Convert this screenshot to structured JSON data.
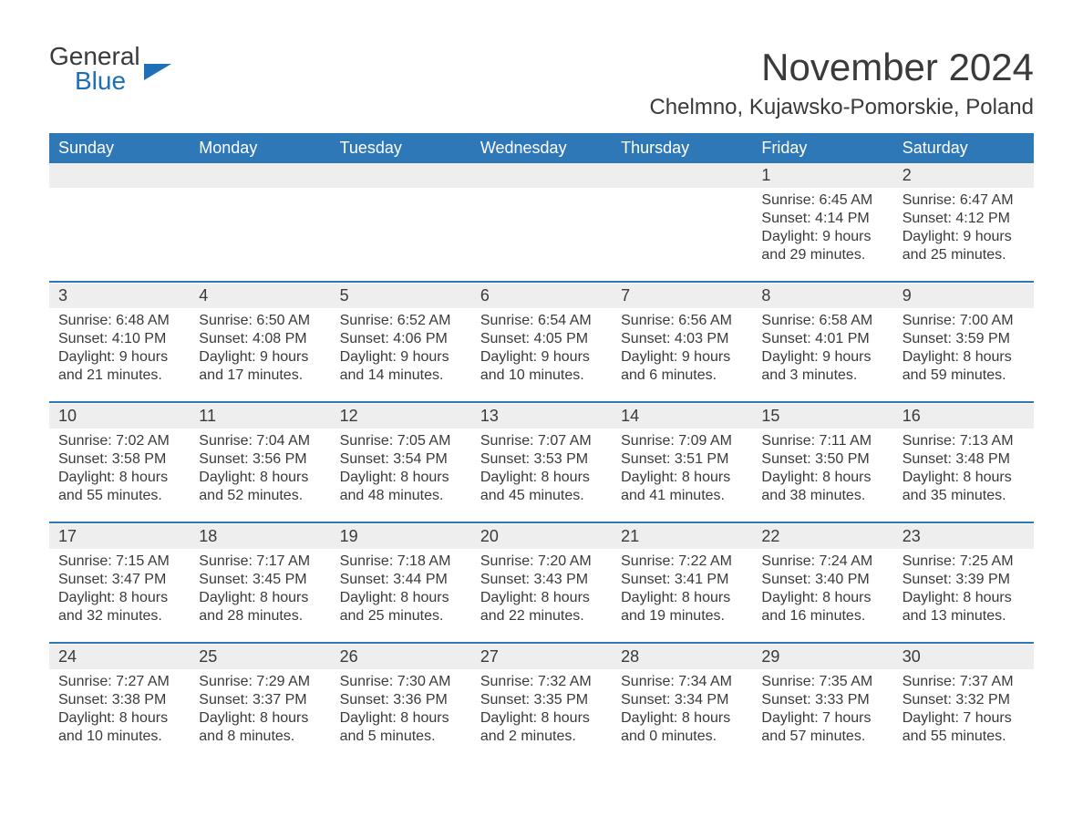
{
  "brand": {
    "general": "General",
    "blue": "Blue"
  },
  "title": "November 2024",
  "location": "Chelmno, Kujawsko-Pomorskie, Poland",
  "colors": {
    "header_bg": "#2f78b7",
    "header_text": "#ffffff",
    "daynum_bg": "#eeeeee",
    "border": "#2f78b7",
    "text": "#3a3a3a",
    "brand_blue": "#1d6fb8",
    "page_bg": "#ffffff"
  },
  "weekdays": [
    "Sunday",
    "Monday",
    "Tuesday",
    "Wednesday",
    "Thursday",
    "Friday",
    "Saturday"
  ],
  "weeks": [
    [
      null,
      null,
      null,
      null,
      null,
      {
        "n": "1",
        "sunrise": "Sunrise: 6:45 AM",
        "sunset": "Sunset: 4:14 PM",
        "d1": "Daylight: 9 hours",
        "d2": "and 29 minutes."
      },
      {
        "n": "2",
        "sunrise": "Sunrise: 6:47 AM",
        "sunset": "Sunset: 4:12 PM",
        "d1": "Daylight: 9 hours",
        "d2": "and 25 minutes."
      }
    ],
    [
      {
        "n": "3",
        "sunrise": "Sunrise: 6:48 AM",
        "sunset": "Sunset: 4:10 PM",
        "d1": "Daylight: 9 hours",
        "d2": "and 21 minutes."
      },
      {
        "n": "4",
        "sunrise": "Sunrise: 6:50 AM",
        "sunset": "Sunset: 4:08 PM",
        "d1": "Daylight: 9 hours",
        "d2": "and 17 minutes."
      },
      {
        "n": "5",
        "sunrise": "Sunrise: 6:52 AM",
        "sunset": "Sunset: 4:06 PM",
        "d1": "Daylight: 9 hours",
        "d2": "and 14 minutes."
      },
      {
        "n": "6",
        "sunrise": "Sunrise: 6:54 AM",
        "sunset": "Sunset: 4:05 PM",
        "d1": "Daylight: 9 hours",
        "d2": "and 10 minutes."
      },
      {
        "n": "7",
        "sunrise": "Sunrise: 6:56 AM",
        "sunset": "Sunset: 4:03 PM",
        "d1": "Daylight: 9 hours",
        "d2": "and 6 minutes."
      },
      {
        "n": "8",
        "sunrise": "Sunrise: 6:58 AM",
        "sunset": "Sunset: 4:01 PM",
        "d1": "Daylight: 9 hours",
        "d2": "and 3 minutes."
      },
      {
        "n": "9",
        "sunrise": "Sunrise: 7:00 AM",
        "sunset": "Sunset: 3:59 PM",
        "d1": "Daylight: 8 hours",
        "d2": "and 59 minutes."
      }
    ],
    [
      {
        "n": "10",
        "sunrise": "Sunrise: 7:02 AM",
        "sunset": "Sunset: 3:58 PM",
        "d1": "Daylight: 8 hours",
        "d2": "and 55 minutes."
      },
      {
        "n": "11",
        "sunrise": "Sunrise: 7:04 AM",
        "sunset": "Sunset: 3:56 PM",
        "d1": "Daylight: 8 hours",
        "d2": "and 52 minutes."
      },
      {
        "n": "12",
        "sunrise": "Sunrise: 7:05 AM",
        "sunset": "Sunset: 3:54 PM",
        "d1": "Daylight: 8 hours",
        "d2": "and 48 minutes."
      },
      {
        "n": "13",
        "sunrise": "Sunrise: 7:07 AM",
        "sunset": "Sunset: 3:53 PM",
        "d1": "Daylight: 8 hours",
        "d2": "and 45 minutes."
      },
      {
        "n": "14",
        "sunrise": "Sunrise: 7:09 AM",
        "sunset": "Sunset: 3:51 PM",
        "d1": "Daylight: 8 hours",
        "d2": "and 41 minutes."
      },
      {
        "n": "15",
        "sunrise": "Sunrise: 7:11 AM",
        "sunset": "Sunset: 3:50 PM",
        "d1": "Daylight: 8 hours",
        "d2": "and 38 minutes."
      },
      {
        "n": "16",
        "sunrise": "Sunrise: 7:13 AM",
        "sunset": "Sunset: 3:48 PM",
        "d1": "Daylight: 8 hours",
        "d2": "and 35 minutes."
      }
    ],
    [
      {
        "n": "17",
        "sunrise": "Sunrise: 7:15 AM",
        "sunset": "Sunset: 3:47 PM",
        "d1": "Daylight: 8 hours",
        "d2": "and 32 minutes."
      },
      {
        "n": "18",
        "sunrise": "Sunrise: 7:17 AM",
        "sunset": "Sunset: 3:45 PM",
        "d1": "Daylight: 8 hours",
        "d2": "and 28 minutes."
      },
      {
        "n": "19",
        "sunrise": "Sunrise: 7:18 AM",
        "sunset": "Sunset: 3:44 PM",
        "d1": "Daylight: 8 hours",
        "d2": "and 25 minutes."
      },
      {
        "n": "20",
        "sunrise": "Sunrise: 7:20 AM",
        "sunset": "Sunset: 3:43 PM",
        "d1": "Daylight: 8 hours",
        "d2": "and 22 minutes."
      },
      {
        "n": "21",
        "sunrise": "Sunrise: 7:22 AM",
        "sunset": "Sunset: 3:41 PM",
        "d1": "Daylight: 8 hours",
        "d2": "and 19 minutes."
      },
      {
        "n": "22",
        "sunrise": "Sunrise: 7:24 AM",
        "sunset": "Sunset: 3:40 PM",
        "d1": "Daylight: 8 hours",
        "d2": "and 16 minutes."
      },
      {
        "n": "23",
        "sunrise": "Sunrise: 7:25 AM",
        "sunset": "Sunset: 3:39 PM",
        "d1": "Daylight: 8 hours",
        "d2": "and 13 minutes."
      }
    ],
    [
      {
        "n": "24",
        "sunrise": "Sunrise: 7:27 AM",
        "sunset": "Sunset: 3:38 PM",
        "d1": "Daylight: 8 hours",
        "d2": "and 10 minutes."
      },
      {
        "n": "25",
        "sunrise": "Sunrise: 7:29 AM",
        "sunset": "Sunset: 3:37 PM",
        "d1": "Daylight: 8 hours",
        "d2": "and 8 minutes."
      },
      {
        "n": "26",
        "sunrise": "Sunrise: 7:30 AM",
        "sunset": "Sunset: 3:36 PM",
        "d1": "Daylight: 8 hours",
        "d2": "and 5 minutes."
      },
      {
        "n": "27",
        "sunrise": "Sunrise: 7:32 AM",
        "sunset": "Sunset: 3:35 PM",
        "d1": "Daylight: 8 hours",
        "d2": "and 2 minutes."
      },
      {
        "n": "28",
        "sunrise": "Sunrise: 7:34 AM",
        "sunset": "Sunset: 3:34 PM",
        "d1": "Daylight: 8 hours",
        "d2": "and 0 minutes."
      },
      {
        "n": "29",
        "sunrise": "Sunrise: 7:35 AM",
        "sunset": "Sunset: 3:33 PM",
        "d1": "Daylight: 7 hours",
        "d2": "and 57 minutes."
      },
      {
        "n": "30",
        "sunrise": "Sunrise: 7:37 AM",
        "sunset": "Sunset: 3:32 PM",
        "d1": "Daylight: 7 hours",
        "d2": "and 55 minutes."
      }
    ]
  ]
}
